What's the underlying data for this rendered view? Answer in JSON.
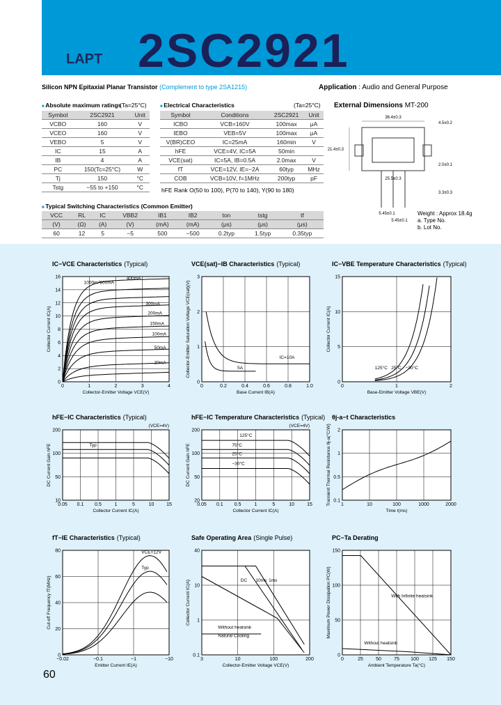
{
  "header": {
    "brand": "LAPT",
    "part_number": "2SC2921"
  },
  "description": {
    "title": "Silicon NPN Epitaxial Planar Transistor",
    "complement": "(Complement to type 2SA1215)",
    "application_label": "Application",
    "application": ": Audio and General Purpose"
  },
  "absolute_maximum_ratings": {
    "title": "Absolute maximum ratings",
    "condition": "(Ta=25°C)",
    "header": [
      "Symbol",
      "2SC2921",
      "Unit"
    ],
    "rows": [
      [
        "VCBO",
        "160",
        "V"
      ],
      [
        "VCEO",
        "160",
        "V"
      ],
      [
        "VEBO",
        "5",
        "V"
      ],
      [
        "IC",
        "15",
        "A"
      ],
      [
        "IB",
        "4",
        "A"
      ],
      [
        "PC",
        "150(Tc=25°C)",
        "W"
      ],
      [
        "Tj",
        "150",
        "°C"
      ],
      [
        "Tstg",
        "−55 to +150",
        "°C"
      ]
    ]
  },
  "electrical_characteristics": {
    "title": "Electrical Characteristics",
    "condition": "(Ta=25°C)",
    "header": [
      "Symbol",
      "Conditions",
      "2SC2921",
      "Unit"
    ],
    "rows": [
      [
        "ICBO",
        "VCB=160V",
        "100max",
        "μA"
      ],
      [
        "IEBO",
        "VEB=5V",
        "100max",
        "μA"
      ],
      [
        "V(BR)CEO",
        "IC=25mA",
        "160min",
        "V"
      ],
      [
        "hFE",
        "VCE=4V, IC=5A",
        "50min",
        ""
      ],
      [
        "VCE(sat)",
        "IC=5A, IB=0.5A",
        "2.0max",
        "V"
      ],
      [
        "fT",
        "VCE=12V, IE=−2A",
        "60typ",
        "MHz"
      ],
      [
        "COB",
        "VCB=10V, f=1MHz",
        "200typ",
        "pF"
      ]
    ],
    "hfe_rank_label": "hFE Rank",
    "hfe_rank": "O(50 to 100), P(70 to 140), Y(90 to 180)"
  },
  "switching_characteristics": {
    "title": "Typical Switching Characteristics (Common Emitter)",
    "header": [
      [
        "VCC",
        "(V)"
      ],
      [
        "RL",
        "(Ω)"
      ],
      [
        "IC",
        "(A)"
      ],
      [
        "VBB2",
        "(V)"
      ],
      [
        "IB1",
        "(mA)"
      ],
      [
        "IB2",
        "(mA)"
      ],
      [
        "ton",
        "(μs)"
      ],
      [
        "tstg",
        "(μs)"
      ],
      [
        "tf",
        "(μs)"
      ]
    ],
    "values": [
      "60",
      "12",
      "5",
      "−5",
      "500",
      "−500",
      "0.2typ",
      "1.5typ",
      "0.35typ"
    ]
  },
  "external_dimensions": {
    "title": "External Dimensions",
    "package": "MT-200",
    "dimensions": [
      "36.4±0.3",
      "21.4±0.3",
      "4.5±0.2",
      "25.5±0.3",
      "5.45±0.1",
      "5.45±0.1",
      "3.3±0.3",
      "2.0±0.1"
    ],
    "weight": "Weight : Approx 18.4g",
    "notes": [
      "a. Type No.",
      "b. Lot No."
    ]
  },
  "graphs": [
    {
      "title": "IC−VCE Characteristics",
      "note": "(Typical)",
      "x_label": "Collector-Emitter Voltage VCE(V)",
      "y_label": "Collector Current IC(A)",
      "xticks": [
        "0",
        "1",
        "2",
        "3",
        "4"
      ],
      "yticks": [
        "0",
        "2",
        "4",
        "6",
        "8",
        "10",
        "12",
        "14",
        "16"
      ],
      "annotations": [
        "1000mA",
        "600mA",
        "400mA",
        "300mA",
        "200mA",
        "150mA",
        "100mA",
        "50mA",
        "20mA"
      ]
    },
    {
      "title": "VCE(sat)−IB Characteristics",
      "note": "(Typical)",
      "x_label": "Base Current IB(A)",
      "y_label": "Collector-Emitter Saturation Voltage VCE(sat)(V)",
      "xticks": [
        "0",
        "0.2",
        "0.4",
        "0.6",
        "0.8",
        "1.0"
      ],
      "yticks": [
        "0",
        "1",
        "2",
        "3"
      ],
      "annotations": [
        "IC=10A",
        "5A"
      ]
    },
    {
      "title": "IC−VBE Temperature Characteristics",
      "note": "(Typical)",
      "x_label": "Base-Emitter Voltage VBE(V)",
      "y_label": "Collector Current IC(A)",
      "xticks": [
        "0",
        "1",
        "2"
      ],
      "yticks": [
        "0",
        "5",
        "10",
        "15"
      ],
      "annotations": [
        "125°C",
        "25°C",
        "−30°C"
      ]
    },
    {
      "title": "hFE−IC Characteristics",
      "note": "(Typical)",
      "condition": "(VCE=4V)",
      "x_label": "Collector Current IC(A)",
      "y_label": "DC Current Gain hFE",
      "xticks": [
        "0.05",
        "0.1",
        "0.5",
        "1",
        "5",
        "10",
        "15"
      ],
      "yticks": [
        "10",
        "50",
        "100",
        "200"
      ],
      "annotations": [
        "Typ"
      ]
    },
    {
      "title": "hFE−IC Temperature Characteristics",
      "note": "(Typical)",
      "condition": "(VCE=4V)",
      "x_label": "Collector Current IC(A)",
      "y_label": "DC Current Gain hFE",
      "xticks": [
        "0.05",
        "0.1",
        "0.5",
        "1",
        "5",
        "10",
        "15"
      ],
      "yticks": [
        "20",
        "50",
        "100",
        "200"
      ],
      "annotations": [
        "125°C",
        "75°C",
        "25°C",
        "−30°C"
      ]
    },
    {
      "title": "θj-a−t Characteristics",
      "note": "",
      "x_label": "Time t(ms)",
      "y_label": "Transient Thermal Resistance θj-a(°C/W)",
      "xticks": [
        "1",
        "10",
        "100",
        "1000",
        "2000"
      ],
      "yticks": [
        "0.1",
        "0.5",
        "1",
        "2"
      ],
      "annotations": []
    },
    {
      "title": "fT−IE Characteristics",
      "note": "(Typical)",
      "x_label": "Emitter Current IE(A)",
      "y_label": "Cut-off Frequency fT(MHz)",
      "xticks": [
        "−0.02",
        "−0.1",
        "−1",
        "−10"
      ],
      "yticks": [
        "0",
        "20",
        "40",
        "60",
        "80"
      ],
      "annotations": [
        "VCE=12V",
        "Typ"
      ]
    },
    {
      "title": "Safe Operating Area",
      "note": "(Single Pulse)",
      "x_label": "Collector-Emitter Voltage VCE(V)",
      "y_label": "Collector Current IC(A)",
      "xticks": [
        "3",
        "10",
        "100",
        "200"
      ],
      "yticks": [
        "0.1",
        "1",
        "10",
        "40"
      ],
      "annotations": [
        "1ms",
        "10ms",
        "DC",
        "Without heatsink",
        "Natural Cooling"
      ]
    },
    {
      "title": "PC−Ta Derating",
      "note": "",
      "x_label": "Ambient Temperature Ta(°C)",
      "y_label": "Maximum Power Dissipation PC(W)",
      "xticks": [
        "0",
        "25",
        "50",
        "75",
        "100",
        "125",
        "150"
      ],
      "yticks": [
        "0",
        "50",
        "100",
        "150"
      ],
      "annotations": [
        "With Infinite heatsink",
        "Without heatsink"
      ]
    }
  ],
  "page_number": "60"
}
